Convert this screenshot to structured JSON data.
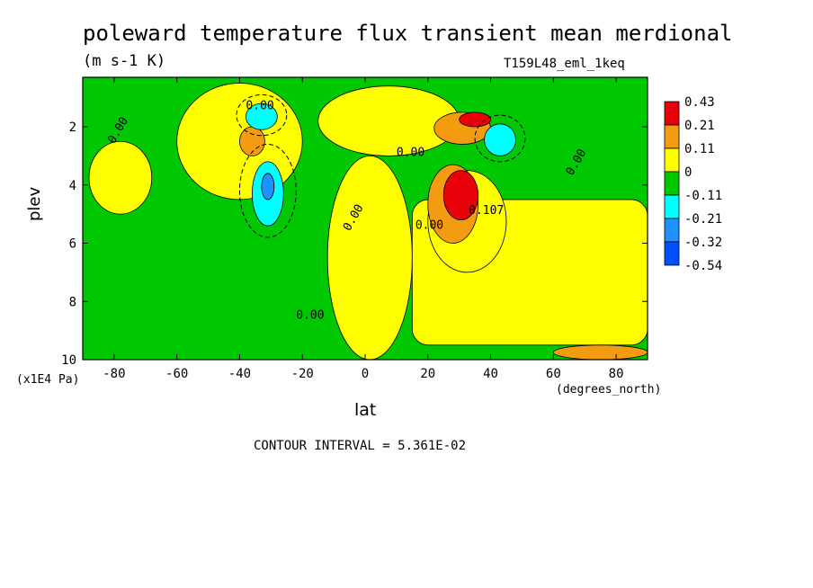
{
  "chart_data": {
    "type": "heatmap",
    "title": "poleward temperature flux transient mean merdional",
    "units": "(m s-1 K)",
    "dataset": "T159L48_eml_1keq",
    "xlabel": "lat",
    "xunits": "(degrees_north)",
    "ylabel": "plev",
    "yunits": "(x1E4 Pa)",
    "xlim": [
      -90,
      90
    ],
    "ylim": [
      10,
      0.3
    ],
    "xticks": [
      "-80",
      "-60",
      "-40",
      "-20",
      "0",
      "20",
      "40",
      "60",
      "80"
    ],
    "yticks": [
      "2",
      "4",
      "6",
      "8",
      "10"
    ],
    "contour_interval": "CONTOUR INTERVAL = 5.361E-02",
    "contour_labels": [
      "0.00",
      "0.00",
      "0.00",
      "0.00",
      "0.00",
      "0.00",
      "0.00",
      "0.107"
    ],
    "legend": [
      {
        "label": "0.43",
        "color": "#e8000b"
      },
      {
        "label": "0.21",
        "color": "#f39c12"
      },
      {
        "label": "0.11",
        "color": "#ffff00"
      },
      {
        "label": "0",
        "color": "#00c800"
      },
      {
        "label": "-0.11",
        "color": "#00ffff"
      },
      {
        "label": "-0.21",
        "color": "#1e90ff"
      },
      {
        "label": "-0.32",
        "color": "#0050ff"
      },
      {
        "label": "-0.54",
        "color": ""
      }
    ],
    "regions": [
      {
        "lat": [
          -90,
          90
        ],
        "plev": [
          0.3,
          10
        ],
        "value": "green"
      },
      {
        "lat": [
          -60,
          -20
        ],
        "plev": [
          0.5,
          4.5
        ],
        "value": "yellow"
      },
      {
        "lat": [
          -88,
          -68
        ],
        "plev": [
          2.5,
          5.0
        ],
        "value": "yellow"
      },
      {
        "lat": [
          -15,
          30
        ],
        "plev": [
          0.6,
          3.0
        ],
        "value": "yellow"
      },
      {
        "lat": [
          -12,
          15
        ],
        "plev": [
          3.0,
          10
        ],
        "value": "yellow"
      },
      {
        "lat": [
          15,
          90
        ],
        "plev": [
          4.5,
          9.5
        ],
        "value": "yellow"
      },
      {
        "lat": [
          20,
          45
        ],
        "plev": [
          3.5,
          7.0
        ],
        "value": "yellow"
      },
      {
        "lat": [
          -40,
          -32
        ],
        "plev": [
          2.0,
          3.0
        ],
        "value": "orange"
      },
      {
        "lat": [
          20,
          36
        ],
        "plev": [
          3.3,
          6.0
        ],
        "value": "orange"
      },
      {
        "lat": [
          25,
          36
        ],
        "plev": [
          3.5,
          5.2
        ],
        "value": "red"
      },
      {
        "lat": [
          22,
          40
        ],
        "plev": [
          1.5,
          2.6
        ],
        "value": "orange"
      },
      {
        "lat": [
          30,
          40
        ],
        "plev": [
          1.5,
          2.0
        ],
        "value": "red"
      },
      {
        "lat": [
          -36,
          -26
        ],
        "plev": [
          3.2,
          5.4
        ],
        "value": "cyan"
      },
      {
        "lat": [
          -33,
          -29
        ],
        "plev": [
          3.6,
          4.5
        ],
        "value": "blue"
      },
      {
        "lat": [
          -38,
          -28
        ],
        "plev": [
          1.2,
          2.1
        ],
        "value": "cyan"
      },
      {
        "lat": [
          38,
          48
        ],
        "plev": [
          1.9,
          3.0
        ],
        "value": "cyan"
      },
      {
        "lat": [
          60,
          90
        ],
        "plev": [
          9.5,
          10
        ],
        "value": "orange"
      }
    ]
  }
}
